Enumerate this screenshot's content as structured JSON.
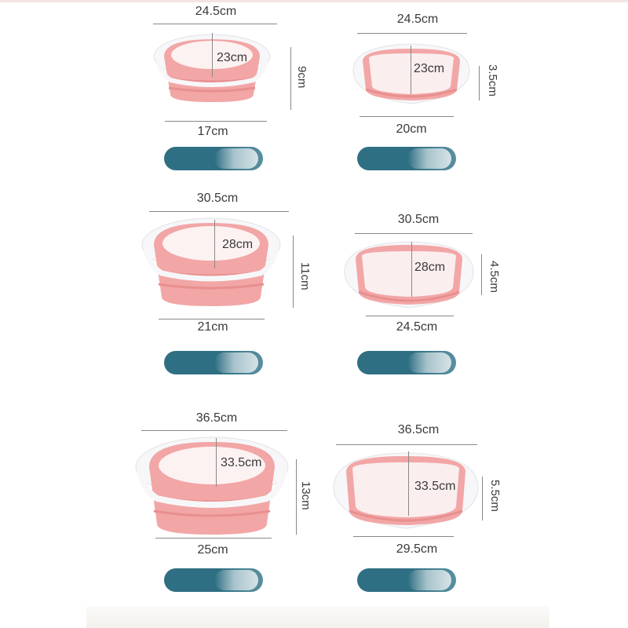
{
  "colors": {
    "pink": "#f2a6a6",
    "pink_dark": "#e99393",
    "white_rim": "#f7f7f9",
    "swatch": "#2f6f83",
    "swatch_dark": "#285f72"
  },
  "basins": [
    {
      "id": "open-small",
      "top_width": "24.5cm",
      "inner_depth": "23cm",
      "height": "9cm",
      "bottom_width": "17cm"
    },
    {
      "id": "folded-small",
      "top_width": "24.5cm",
      "inner_depth": "23cm",
      "height": "3.5cm",
      "bottom_width": "20cm"
    },
    {
      "id": "open-medium",
      "top_width": "30.5cm",
      "inner_depth": "28cm",
      "height": "11cm",
      "bottom_width": "21cm"
    },
    {
      "id": "folded-medium",
      "top_width": "30.5cm",
      "inner_depth": "28cm",
      "height": "4.5cm",
      "bottom_width": "24.5cm"
    },
    {
      "id": "open-large",
      "top_width": "36.5cm",
      "inner_depth": "33.5cm",
      "height": "13cm",
      "bottom_width": "25cm"
    },
    {
      "id": "folded-large",
      "top_width": "36.5cm",
      "inner_depth": "33.5cm",
      "height": "5.5cm",
      "bottom_width": "29.5cm"
    }
  ]
}
